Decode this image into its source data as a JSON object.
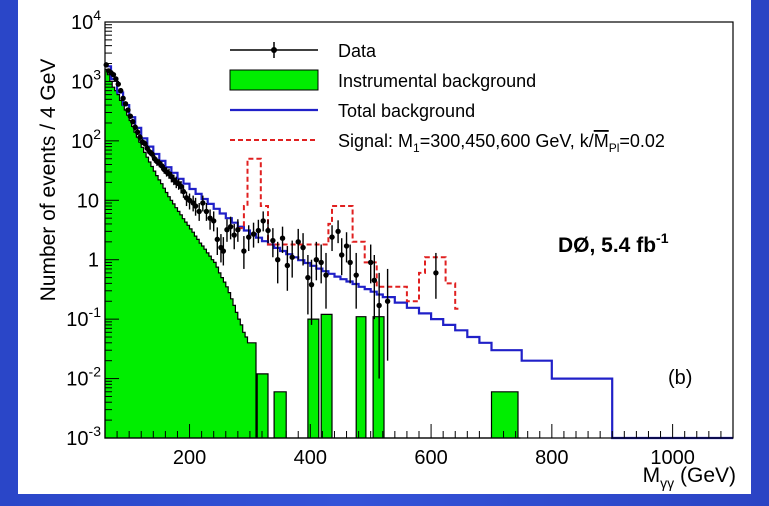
{
  "chart_data": {
    "type": "histogram",
    "title": "",
    "xlabel": "M",
    "xlabel_sub": "γγ",
    "xlabel_unit": " (GeV)",
    "ylabel": "Number of events / 4 GeV",
    "xlim": [
      60,
      1100
    ],
    "ylim": [
      0.001,
      10000
    ],
    "y_scale": "log",
    "xticks": [
      200,
      400,
      600,
      800,
      1000
    ],
    "yticks": [
      {
        "v": 0.001,
        "b": "10",
        "e": "-3"
      },
      {
        "v": 0.01,
        "b": "10",
        "e": "-2"
      },
      {
        "v": 0.1,
        "b": "10",
        "e": "-1"
      },
      {
        "v": 1,
        "b": "1",
        "e": ""
      },
      {
        "v": 10,
        "b": "10",
        "e": ""
      },
      {
        "v": 100,
        "b": "10",
        "e": "2"
      },
      {
        "v": 1000,
        "b": "10",
        "e": "3"
      },
      {
        "v": 10000,
        "b": "10",
        "e": "4"
      }
    ],
    "legend": {
      "placement": "top-right",
      "entries": [
        {
          "label": "Data",
          "style": "points"
        },
        {
          "label": "Instrumental background",
          "style": "fill"
        },
        {
          "label": "Total background",
          "style": "line"
        },
        {
          "label_parts": [
            "Signal: M",
            "1",
            "=300,450,600 GeV, k/",
            "M",
            "Pl",
            "=0.02"
          ],
          "style": "dashed"
        }
      ]
    },
    "experiment_label": {
      "main": "DØ,  5.4 fb",
      "sup": "-1"
    },
    "panel_label": "(b)",
    "colors": {
      "instrumental": "#00ee00",
      "total": "#2020c8",
      "signal": "#e02020",
      "data": "#000000"
    },
    "instrumental_background": [
      [
        60,
        1600
      ],
      [
        64,
        1300
      ],
      [
        68,
        1000
      ],
      [
        72,
        800
      ],
      [
        76,
        700
      ],
      [
        80,
        600
      ],
      [
        84,
        480
      ],
      [
        88,
        400
      ],
      [
        92,
        330
      ],
      [
        96,
        270
      ],
      [
        100,
        220
      ],
      [
        104,
        175
      ],
      [
        108,
        140
      ],
      [
        112,
        115
      ],
      [
        116,
        95
      ],
      [
        120,
        78
      ],
      [
        124,
        64
      ],
      [
        128,
        53
      ],
      [
        132,
        44
      ],
      [
        136,
        37
      ],
      [
        140,
        31
      ],
      [
        144,
        26
      ],
      [
        148,
        22
      ],
      [
        152,
        19
      ],
      [
        156,
        16
      ],
      [
        160,
        13.5
      ],
      [
        164,
        11.5
      ],
      [
        168,
        10
      ],
      [
        172,
        8.7
      ],
      [
        176,
        7.5
      ],
      [
        180,
        6.5
      ],
      [
        184,
        5.7
      ],
      [
        188,
        4.9
      ],
      [
        192,
        4.3
      ],
      [
        196,
        3.8
      ],
      [
        200,
        3.3
      ],
      [
        204,
        2.9
      ],
      [
        208,
        2.5
      ],
      [
        212,
        2.2
      ],
      [
        216,
        1.9
      ],
      [
        220,
        1.7
      ],
      [
        224,
        1.5
      ],
      [
        228,
        1.3
      ],
      [
        232,
        1.15
      ],
      [
        236,
        1.0
      ],
      [
        240,
        0.9
      ],
      [
        244,
        0.75
      ],
      [
        248,
        0.6
      ],
      [
        252,
        0.5
      ],
      [
        256,
        0.42
      ],
      [
        260,
        0.35
      ],
      [
        264,
        0.28
      ],
      [
        268,
        0.22
      ],
      [
        272,
        0.17
      ],
      [
        276,
        0.13
      ],
      [
        280,
        0.1
      ],
      [
        284,
        0.08
      ],
      [
        288,
        0.06
      ],
      [
        292,
        0.05
      ],
      [
        296,
        0.04
      ],
      [
        310,
        0.001
      ],
      [
        312,
        0.012
      ],
      [
        330,
        0.001
      ],
      [
        340,
        0.006
      ],
      [
        360,
        0.001
      ],
      [
        380,
        0.001
      ],
      [
        396,
        0.1
      ],
      [
        414,
        0.001
      ],
      [
        418,
        0.12
      ],
      [
        436,
        0.001
      ],
      [
        476,
        0.11
      ],
      [
        492,
        0.001
      ],
      [
        504,
        0.11
      ],
      [
        522,
        0.001
      ],
      [
        700,
        0.006
      ],
      [
        744,
        0.001
      ]
    ],
    "total_background": [
      [
        60,
        1800
      ],
      [
        70,
        1100
      ],
      [
        80,
        650
      ],
      [
        90,
        400
      ],
      [
        100,
        250
      ],
      [
        110,
        165
      ],
      [
        120,
        110
      ],
      [
        130,
        80
      ],
      [
        140,
        60
      ],
      [
        150,
        46
      ],
      [
        160,
        36
      ],
      [
        170,
        29
      ],
      [
        180,
        23
      ],
      [
        190,
        19
      ],
      [
        200,
        15.5
      ],
      [
        210,
        12.8
      ],
      [
        220,
        10.5
      ],
      [
        230,
        8.7
      ],
      [
        240,
        7.2
      ],
      [
        250,
        6.0
      ],
      [
        260,
        5.0
      ],
      [
        270,
        4.2
      ],
      [
        280,
        3.6
      ],
      [
        290,
        3.1
      ],
      [
        300,
        2.7
      ],
      [
        310,
        2.35
      ],
      [
        320,
        2.05
      ],
      [
        330,
        1.8
      ],
      [
        340,
        1.58
      ],
      [
        350,
        1.4
      ],
      [
        360,
        1.24
      ],
      [
        370,
        1.1
      ],
      [
        380,
        0.98
      ],
      [
        390,
        0.88
      ],
      [
        400,
        0.79
      ],
      [
        410,
        0.71
      ],
      [
        420,
        0.64
      ],
      [
        430,
        0.58
      ],
      [
        440,
        0.52
      ],
      [
        450,
        0.47
      ],
      [
        460,
        0.43
      ],
      [
        470,
        0.39
      ],
      [
        480,
        0.35
      ],
      [
        490,
        0.32
      ],
      [
        500,
        0.29
      ],
      [
        510,
        0.26
      ],
      [
        520,
        0.235
      ],
      [
        540,
        0.19
      ],
      [
        560,
        0.155
      ],
      [
        580,
        0.125
      ],
      [
        600,
        0.1
      ],
      [
        620,
        0.08
      ],
      [
        640,
        0.065
      ],
      [
        660,
        0.05
      ],
      [
        680,
        0.04
      ],
      [
        700,
        0.03
      ],
      [
        750,
        0.02
      ],
      [
        800,
        0.01
      ],
      [
        900,
        0.001
      ]
    ],
    "signal": [
      [
        280,
        3.4
      ],
      [
        290,
        8
      ],
      [
        296,
        50
      ],
      [
        312,
        50
      ],
      [
        318,
        8
      ],
      [
        330,
        1.8
      ],
      [
        420,
        1.8
      ],
      [
        430,
        4
      ],
      [
        436,
        8
      ],
      [
        464,
        8
      ],
      [
        470,
        2
      ],
      [
        490,
        0.9
      ],
      [
        510,
        0.35
      ],
      [
        540,
        0.35
      ],
      [
        560,
        0.2
      ],
      [
        580,
        0.6
      ],
      [
        590,
        1.1
      ],
      [
        616,
        1.1
      ],
      [
        624,
        0.4
      ],
      [
        640,
        0.15
      ]
    ],
    "data_points": [
      {
        "x": 62,
        "y": 1900,
        "lo": 1800,
        "hi": 2000
      },
      {
        "x": 66,
        "y": 1500,
        "lo": 1420,
        "hi": 1580
      },
      {
        "x": 70,
        "y": 1400,
        "lo": 1330,
        "hi": 1480
      },
      {
        "x": 74,
        "y": 1300,
        "lo": 1230,
        "hi": 1370
      },
      {
        "x": 78,
        "y": 1100,
        "lo": 1040,
        "hi": 1170
      },
      {
        "x": 82,
        "y": 900,
        "lo": 850,
        "hi": 960
      },
      {
        "x": 86,
        "y": 700,
        "lo": 650,
        "hi": 750
      },
      {
        "x": 90,
        "y": 520,
        "lo": 480,
        "hi": 560
      },
      {
        "x": 94,
        "y": 420,
        "lo": 390,
        "hi": 460
      },
      {
        "x": 98,
        "y": 330,
        "lo": 300,
        "hi": 360
      },
      {
        "x": 102,
        "y": 260,
        "lo": 235,
        "hi": 285
      },
      {
        "x": 106,
        "y": 210,
        "lo": 190,
        "hi": 235
      },
      {
        "x": 110,
        "y": 170,
        "lo": 150,
        "hi": 190
      },
      {
        "x": 114,
        "y": 140,
        "lo": 125,
        "hi": 160
      },
      {
        "x": 118,
        "y": 115,
        "lo": 100,
        "hi": 130
      },
      {
        "x": 122,
        "y": 95,
        "lo": 85,
        "hi": 108
      },
      {
        "x": 126,
        "y": 90,
        "lo": 80,
        "hi": 102
      },
      {
        "x": 130,
        "y": 75,
        "lo": 65,
        "hi": 86
      },
      {
        "x": 134,
        "y": 65,
        "lo": 57,
        "hi": 74
      },
      {
        "x": 138,
        "y": 60,
        "lo": 52,
        "hi": 69
      },
      {
        "x": 142,
        "y": 50,
        "lo": 43,
        "hi": 58
      },
      {
        "x": 146,
        "y": 45,
        "lo": 38,
        "hi": 52
      },
      {
        "x": 150,
        "y": 42,
        "lo": 36,
        "hi": 49
      },
      {
        "x": 154,
        "y": 38,
        "lo": 32,
        "hi": 45
      },
      {
        "x": 158,
        "y": 33,
        "lo": 28,
        "hi": 39
      },
      {
        "x": 162,
        "y": 30,
        "lo": 25,
        "hi": 36
      },
      {
        "x": 166,
        "y": 28,
        "lo": 23,
        "hi": 34
      },
      {
        "x": 170,
        "y": 25,
        "lo": 20,
        "hi": 30
      },
      {
        "x": 174,
        "y": 22,
        "lo": 18,
        "hi": 27
      },
      {
        "x": 178,
        "y": 20,
        "lo": 16,
        "hi": 25
      },
      {
        "x": 182,
        "y": 19,
        "lo": 15,
        "hi": 23
      },
      {
        "x": 186,
        "y": 17,
        "lo": 13,
        "hi": 21
      },
      {
        "x": 190,
        "y": 14,
        "lo": 11,
        "hi": 18
      },
      {
        "x": 195,
        "y": 11,
        "lo": 8,
        "hi": 14
      },
      {
        "x": 200,
        "y": 10,
        "lo": 7,
        "hi": 13
      },
      {
        "x": 206,
        "y": 9,
        "lo": 6.5,
        "hi": 12
      },
      {
        "x": 210,
        "y": 8,
        "lo": 5.5,
        "hi": 11
      },
      {
        "x": 216,
        "y": 6.5,
        "lo": 4.5,
        "hi": 9
      },
      {
        "x": 222,
        "y": 9,
        "lo": 6.5,
        "hi": 12
      },
      {
        "x": 228,
        "y": 6.5,
        "lo": 4.5,
        "hi": 9
      },
      {
        "x": 234,
        "y": 5,
        "lo": 3.2,
        "hi": 7
      },
      {
        "x": 240,
        "y": 4.5,
        "lo": 3,
        "hi": 6.5
      },
      {
        "x": 246,
        "y": 2.2,
        "lo": 1.2,
        "hi": 3.5
      },
      {
        "x": 252,
        "y": 1.6,
        "lo": 0.9,
        "hi": 2.7
      },
      {
        "x": 256,
        "y": 1.4,
        "lo": 0.8,
        "hi": 2.4
      },
      {
        "x": 262,
        "y": 3.2,
        "lo": 2,
        "hi": 4.8
      },
      {
        "x": 268,
        "y": 3.6,
        "lo": 2.2,
        "hi": 5.3
      },
      {
        "x": 274,
        "y": 2.6,
        "lo": 1.5,
        "hi": 4
      },
      {
        "x": 280,
        "y": 3.2,
        "lo": 2,
        "hi": 4.8
      },
      {
        "x": 290,
        "y": 1.4,
        "lo": 0.7,
        "hi": 2.5
      },
      {
        "x": 298,
        "y": 2.4,
        "lo": 1.4,
        "hi": 3.8
      },
      {
        "x": 306,
        "y": 2.7,
        "lo": 1.6,
        "hi": 4.2
      },
      {
        "x": 314,
        "y": 3.1,
        "lo": 1.9,
        "hi": 4.7
      },
      {
        "x": 322,
        "y": 4.5,
        "lo": 3,
        "hi": 6.5
      },
      {
        "x": 330,
        "y": 3.1,
        "lo": 1.9,
        "hi": 4.7
      },
      {
        "x": 338,
        "y": 2.1,
        "lo": 1.1,
        "hi": 3.4
      },
      {
        "x": 346,
        "y": 1.0,
        "lo": 0.4,
        "hi": 2.0
      },
      {
        "x": 354,
        "y": 2.3,
        "lo": 1.3,
        "hi": 3.6
      },
      {
        "x": 362,
        "y": 0.8,
        "lo": 0.3,
        "hi": 1.7
      },
      {
        "x": 370,
        "y": 1.1,
        "lo": 0.5,
        "hi": 2.1
      },
      {
        "x": 380,
        "y": 2.0,
        "lo": 1,
        "hi": 3.3
      },
      {
        "x": 388,
        "y": 1.6,
        "lo": 0.8,
        "hi": 2.8
      },
      {
        "x": 396,
        "y": 0.5,
        "lo": 0.12,
        "hi": 1.2
      },
      {
        "x": 402,
        "y": 0.38,
        "lo": 0.08,
        "hi": 1.0
      },
      {
        "x": 410,
        "y": 1.0,
        "lo": 0.45,
        "hi": 2.0
      },
      {
        "x": 418,
        "y": 0.9,
        "lo": 0.4,
        "hi": 1.8
      },
      {
        "x": 426,
        "y": 0.55,
        "lo": 0.15,
        "hi": 1.3
      },
      {
        "x": 436,
        "y": 2.4,
        "lo": 1.4,
        "hi": 3.8
      },
      {
        "x": 446,
        "y": 3.0,
        "lo": 1.9,
        "hi": 4.6
      },
      {
        "x": 452,
        "y": 1.2,
        "lo": 0.55,
        "hi": 2.3
      },
      {
        "x": 460,
        "y": 1.7,
        "lo": 0.9,
        "hi": 2.9
      },
      {
        "x": 466,
        "y": 0.9,
        "lo": 0.4,
        "hi": 1.8
      },
      {
        "x": 476,
        "y": 0.55,
        "lo": 0.15,
        "hi": 1.3
      },
      {
        "x": 500,
        "y": 0.9,
        "lo": 0.4,
        "hi": 1.8
      },
      {
        "x": 506,
        "y": 0.45,
        "lo": 0.1,
        "hi": 1.2
      },
      {
        "x": 514,
        "y": 0.17,
        "lo": 0.01,
        "hi": 0.6
      },
      {
        "x": 528,
        "y": 0.2,
        "lo": 0.02,
        "hi": 0.7
      },
      {
        "x": 608,
        "y": 0.6,
        "lo": 0.22,
        "hi": 1.3
      }
    ]
  }
}
